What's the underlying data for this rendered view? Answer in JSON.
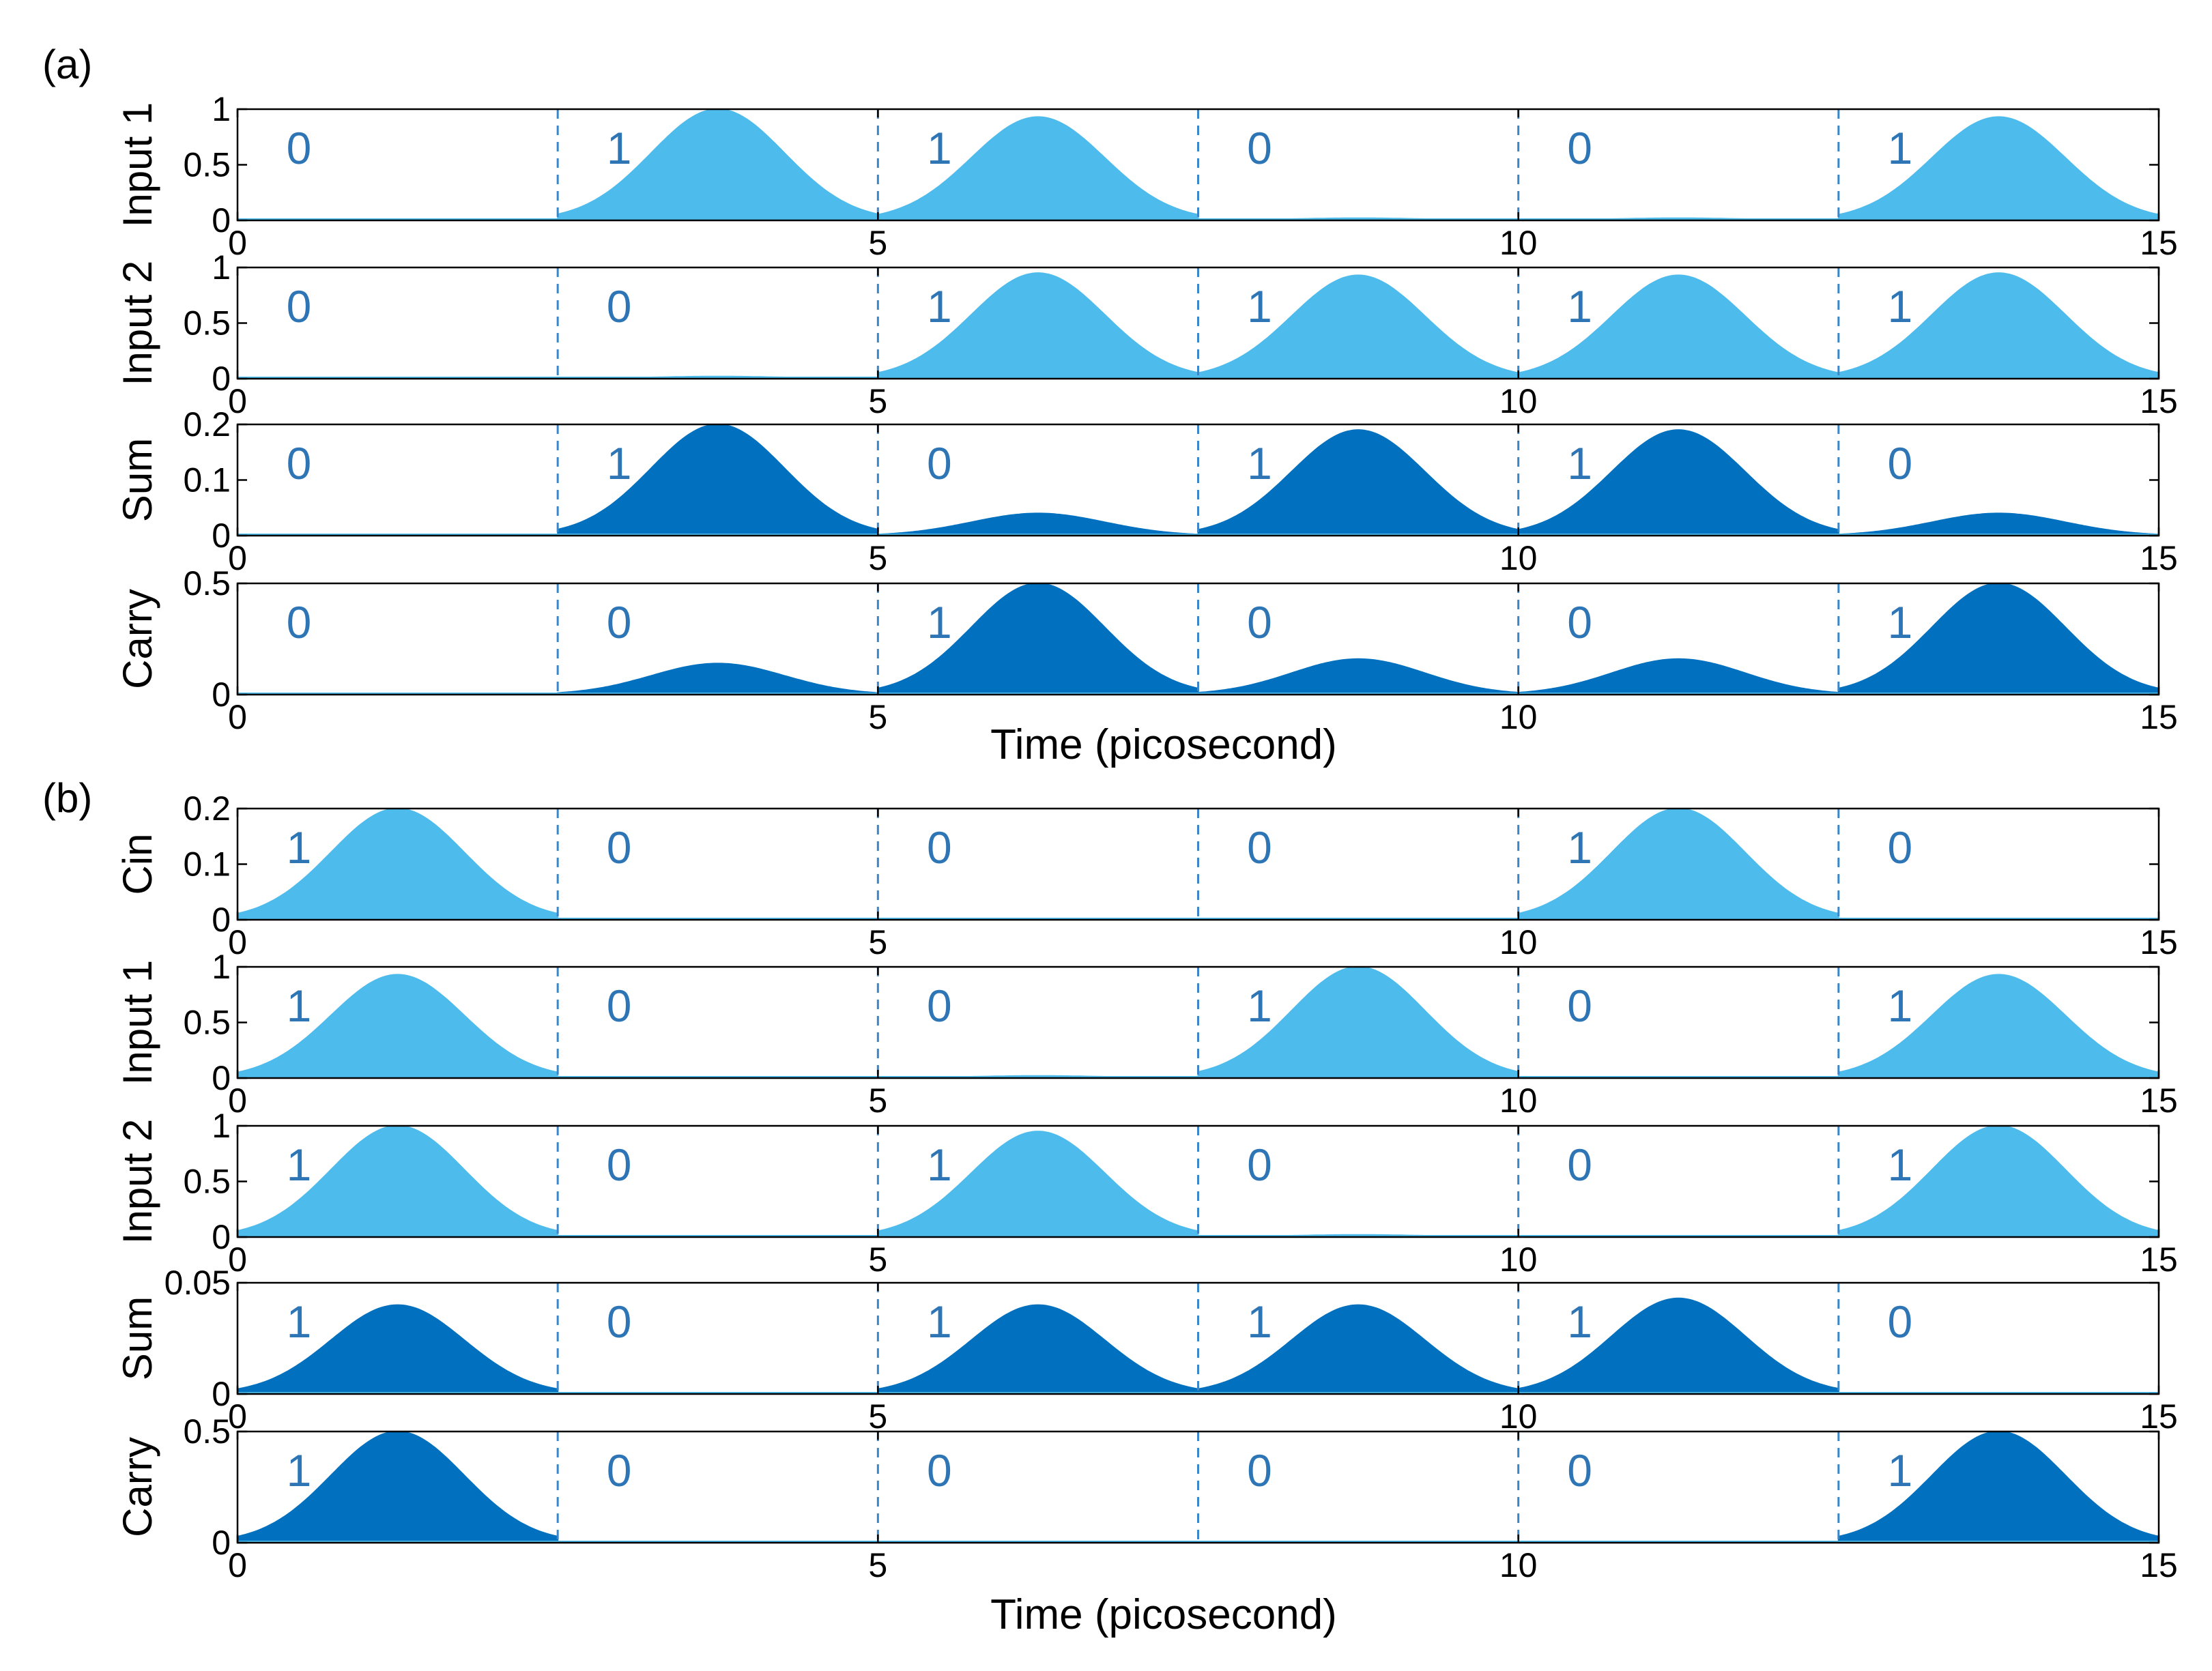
{
  "figure": {
    "panel_labels": [
      "(a)",
      "(b)"
    ],
    "xlabel": "Time (picosecond)",
    "colors": {
      "input": "#4dbbec",
      "output": "#0070bf",
      "divider": "#3a86c8",
      "bit_label": "#2e75b6"
    }
  },
  "chart_data": [
    {
      "type": "area",
      "panel": "(a)",
      "name": "Input 1",
      "ylabel": "Input 1",
      "xlim": [
        0,
        15
      ],
      "ylim": [
        0,
        1
      ],
      "xticks": [
        0,
        5,
        10,
        15
      ],
      "yticks": [
        0,
        0.5,
        1
      ],
      "ytick_labels": [
        "0",
        "0.5",
        "1"
      ],
      "color": "#4dbbec",
      "bit_boundaries": [
        2.5,
        5,
        7.5,
        10,
        12.5
      ],
      "bits": [
        "0",
        "1",
        "1",
        "0",
        "0",
        "1"
      ],
      "pulse_peaks": [
        0,
        1.0,
        0.93,
        0.02,
        0.02,
        0.93
      ],
      "pulse_centers": [
        1.25,
        3.75,
        6.25,
        8.75,
        11.25,
        13.75
      ],
      "pulse_sigma": 0.52
    },
    {
      "type": "area",
      "panel": "(a)",
      "name": "Input 2",
      "ylabel": "Input 2",
      "xlim": [
        0,
        15
      ],
      "ylim": [
        0,
        1
      ],
      "xticks": [
        0,
        5,
        10,
        15
      ],
      "yticks": [
        0,
        0.5,
        1
      ],
      "ytick_labels": [
        "0",
        "0.5",
        "1"
      ],
      "color": "#4dbbec",
      "bit_boundaries": [
        2.5,
        5,
        7.5,
        10,
        12.5
      ],
      "bits": [
        "0",
        "0",
        "1",
        "1",
        "1",
        "1"
      ],
      "pulse_peaks": [
        0,
        0.02,
        0.95,
        0.93,
        0.93,
        0.95
      ],
      "pulse_centers": [
        1.25,
        3.75,
        6.25,
        8.75,
        11.25,
        13.75
      ],
      "pulse_sigma": 0.52
    },
    {
      "type": "area",
      "panel": "(a)",
      "name": "Sum",
      "ylabel": "Sum",
      "xlim": [
        0,
        15
      ],
      "ylim": [
        0,
        0.2
      ],
      "xticks": [
        0,
        5,
        10,
        15
      ],
      "yticks": [
        0,
        0.1,
        0.2
      ],
      "ytick_labels": [
        "0",
        "0.1",
        "0.2"
      ],
      "color": "#0070bf",
      "bit_boundaries": [
        2.5,
        5,
        7.5,
        10,
        12.5
      ],
      "bits": [
        "0",
        "1",
        "0",
        "1",
        "1",
        "0"
      ],
      "pulse_peaks": [
        0,
        0.2,
        0.04,
        0.19,
        0.19,
        0.04
      ],
      "pulse_centers": [
        1.25,
        3.75,
        6.25,
        8.75,
        11.25,
        13.75
      ],
      "pulse_sigma": 0.52
    },
    {
      "type": "area",
      "panel": "(a)",
      "name": "Carry",
      "ylabel": "Carry",
      "xlim": [
        0,
        15
      ],
      "ylim": [
        0,
        0.5
      ],
      "xticks": [
        0,
        5,
        10,
        15
      ],
      "yticks": [
        0,
        0.5
      ],
      "ytick_labels": [
        "0",
        "0.5"
      ],
      "color": "#0070bf",
      "bit_boundaries": [
        2.5,
        5,
        7.5,
        10,
        12.5
      ],
      "bits": [
        "0",
        "0",
        "1",
        "0",
        "0",
        "1"
      ],
      "pulse_peaks": [
        0,
        0.14,
        0.5,
        0.16,
        0.16,
        0.5
      ],
      "pulse_centers": [
        1.25,
        3.75,
        6.25,
        8.75,
        11.25,
        13.75
      ],
      "pulse_sigma": 0.52
    },
    {
      "type": "area",
      "panel": "(b)",
      "name": "Cin",
      "ylabel": "Cin",
      "xlim": [
        0,
        15
      ],
      "ylim": [
        0,
        0.2
      ],
      "xticks": [
        0,
        5,
        10,
        15
      ],
      "yticks": [
        0,
        0.1,
        0.2
      ],
      "ytick_labels": [
        "0",
        "0.1",
        "0.2"
      ],
      "color": "#4dbbec",
      "bit_boundaries": [
        2.5,
        5,
        7.5,
        10,
        12.5
      ],
      "bits": [
        "1",
        "0",
        "0",
        "0",
        "1",
        "0"
      ],
      "pulse_peaks": [
        0.2,
        0,
        0,
        0,
        0.2,
        0
      ],
      "pulse_centers": [
        1.25,
        3.75,
        6.25,
        8.75,
        11.25,
        13.75
      ],
      "pulse_sigma": 0.52
    },
    {
      "type": "area",
      "panel": "(b)",
      "name": "Input 1",
      "ylabel": "Input 1",
      "xlim": [
        0,
        15
      ],
      "ylim": [
        0,
        1
      ],
      "xticks": [
        0,
        5,
        10,
        15
      ],
      "yticks": [
        0,
        0.5,
        1
      ],
      "ytick_labels": [
        "0",
        "0.5",
        "1"
      ],
      "color": "#4dbbec",
      "bit_boundaries": [
        2.5,
        5,
        7.5,
        10,
        12.5
      ],
      "bits": [
        "1",
        "0",
        "0",
        "1",
        "0",
        "1"
      ],
      "pulse_peaks": [
        0.93,
        0,
        0.02,
        1.0,
        0,
        0.93
      ],
      "pulse_centers": [
        1.25,
        3.75,
        6.25,
        8.75,
        11.25,
        13.75
      ],
      "pulse_sigma": 0.52
    },
    {
      "type": "area",
      "panel": "(b)",
      "name": "Input 2",
      "ylabel": "Input 2",
      "xlim": [
        0,
        15
      ],
      "ylim": [
        0,
        1
      ],
      "xticks": [
        0,
        5,
        10,
        15
      ],
      "yticks": [
        0,
        0.5,
        1
      ],
      "ytick_labels": [
        "0",
        "0.5",
        "1"
      ],
      "color": "#4dbbec",
      "bit_boundaries": [
        2.5,
        5,
        7.5,
        10,
        12.5
      ],
      "bits": [
        "1",
        "0",
        "1",
        "0",
        "0",
        "1"
      ],
      "pulse_peaks": [
        1.0,
        0,
        0.95,
        0.02,
        0,
        1.0
      ],
      "pulse_centers": [
        1.25,
        3.75,
        6.25,
        8.75,
        11.25,
        13.75
      ],
      "pulse_sigma": 0.52
    },
    {
      "type": "area",
      "panel": "(b)",
      "name": "Sum",
      "ylabel": "Sum",
      "xlim": [
        0,
        15
      ],
      "ylim": [
        0,
        0.05
      ],
      "xticks": [
        0,
        5,
        10,
        15
      ],
      "yticks": [
        0,
        0.05
      ],
      "ytick_labels": [
        "0",
        "0.05"
      ],
      "color": "#0070bf",
      "bit_boundaries": [
        2.5,
        5,
        7.5,
        10,
        12.5
      ],
      "bits": [
        "1",
        "0",
        "1",
        "1",
        "1",
        "0"
      ],
      "pulse_peaks": [
        0.04,
        0,
        0.04,
        0.04,
        0.043,
        0
      ],
      "pulse_centers": [
        1.25,
        3.75,
        6.25,
        8.75,
        11.25,
        13.75
      ],
      "pulse_sigma": 0.52
    },
    {
      "type": "area",
      "panel": "(b)",
      "name": "Carry",
      "ylabel": "Carry",
      "xlim": [
        0,
        15
      ],
      "ylim": [
        0,
        0.5
      ],
      "xticks": [
        0,
        5,
        10,
        15
      ],
      "yticks": [
        0,
        0.5
      ],
      "ytick_labels": [
        "0",
        "0.5"
      ],
      "color": "#0070bf",
      "bit_boundaries": [
        2.5,
        5,
        7.5,
        10,
        12.5
      ],
      "bits": [
        "1",
        "0",
        "0",
        "0",
        "0",
        "1"
      ],
      "pulse_peaks": [
        0.5,
        0,
        0,
        0,
        0,
        0.5
      ],
      "pulse_centers": [
        1.25,
        3.75,
        6.25,
        8.75,
        11.25,
        13.75
      ],
      "pulse_sigma": 0.52
    }
  ]
}
